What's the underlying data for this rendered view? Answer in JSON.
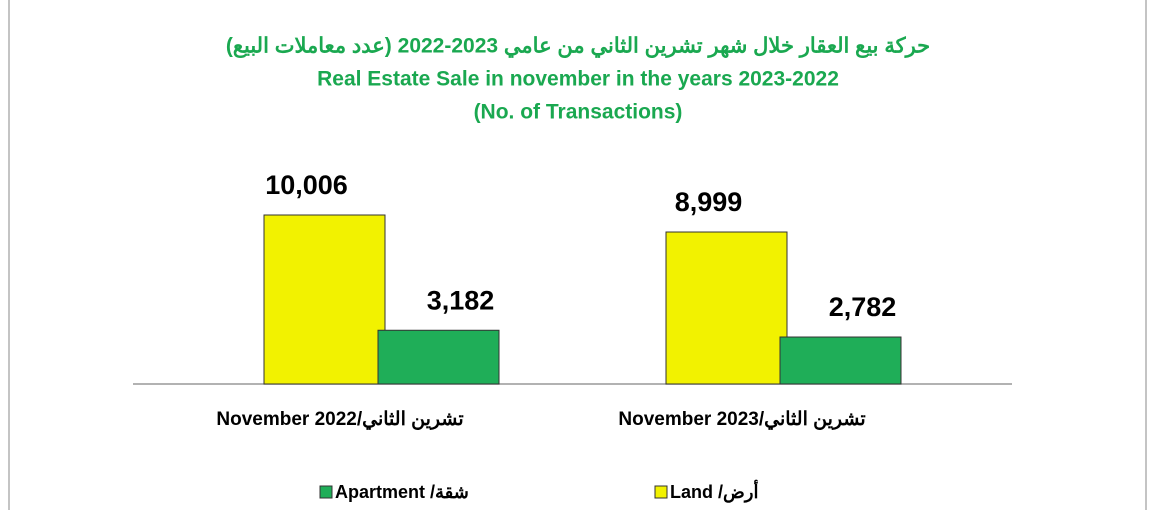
{
  "chart_data": {
    "type": "bar",
    "title": [
      "حركة بيع العقار خلال شهر تشرين الثاني من عامي 2023-2022 (عدد معاملات البيع)",
      "Real Estate Sale in november in the years 2023-2022",
      "(No. of Transactions)"
    ],
    "categories": [
      "November 2022/تشرين الثاني",
      "November 2023/تشرين الثاني"
    ],
    "series": [
      {
        "name": "Land /أرض",
        "color": "#f2f200",
        "values": [
          10006,
          8999
        ],
        "value_labels": [
          "10,006",
          "8,999"
        ]
      },
      {
        "name": "Apartment /شقة",
        "color": "#1fae58",
        "values": [
          3182,
          2782
        ],
        "value_labels": [
          "3,182",
          "2,782"
        ]
      }
    ]
  }
}
